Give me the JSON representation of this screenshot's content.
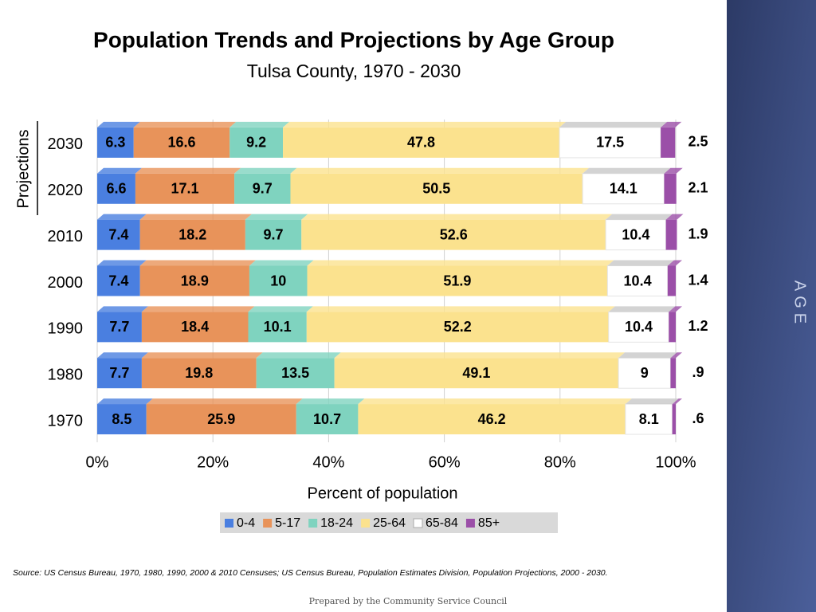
{
  "chart_data": {
    "type": "stacked-bar-horizontal",
    "title": "Population Trends and Projections by Age Group",
    "subtitle": "Tulsa County, 1970 - 2030",
    "xlabel": "Percent of population",
    "group_label": "Projections",
    "categories": [
      "2030",
      "2020",
      "2010",
      "2000",
      "1990",
      "1980",
      "1970"
    ],
    "series": [
      {
        "name": "0-4",
        "color": "#4a7fe0",
        "values": [
          6.3,
          6.6,
          7.4,
          7.4,
          7.7,
          7.7,
          8.5
        ]
      },
      {
        "name": "5-17",
        "color": "#e8935a",
        "values": [
          16.6,
          17.1,
          18.2,
          18.9,
          18.4,
          19.8,
          25.9
        ]
      },
      {
        "name": "18-24",
        "color": "#7fd3bf",
        "values": [
          9.2,
          9.7,
          9.7,
          10,
          10.1,
          13.5,
          10.7
        ]
      },
      {
        "name": "25-64",
        "color": "#fbe28e",
        "values": [
          47.8,
          50.5,
          52.6,
          51.9,
          52.2,
          49.1,
          46.2
        ]
      },
      {
        "name": "65-84",
        "color": "#ffffff",
        "values": [
          17.5,
          14.1,
          10.4,
          10.4,
          10.4,
          9,
          8.1
        ]
      },
      {
        "name": "85+",
        "color": "#9b4fa8",
        "values": [
          2.5,
          2.1,
          1.9,
          1.4,
          1.2,
          0.9,
          0.6
        ],
        "value_labels": [
          "2.5",
          "2.1",
          "1.9",
          "1.4",
          "1.2",
          ".9",
          ".6"
        ]
      }
    ],
    "xlim": [
      0,
      100
    ],
    "xticks": [
      {
        "value": 0,
        "label": "0%"
      },
      {
        "value": 20,
        "label": "20%"
      },
      {
        "value": 40,
        "label": "40%"
      },
      {
        "value": 60,
        "label": "60%"
      },
      {
        "value": 80,
        "label": "80%"
      },
      {
        "value": 100,
        "label": "100%"
      }
    ],
    "grid": true,
    "legend": "bottom"
  },
  "side_label": "AGE",
  "source": "Source:  US Census Bureau, 1970, 1980, 1990, 2000 & 2010 Censuses; US Census Bureau, Population Estimates Division, Population Projections, 2000 - 2030.",
  "footer": "Prepared by the Community Service Council"
}
